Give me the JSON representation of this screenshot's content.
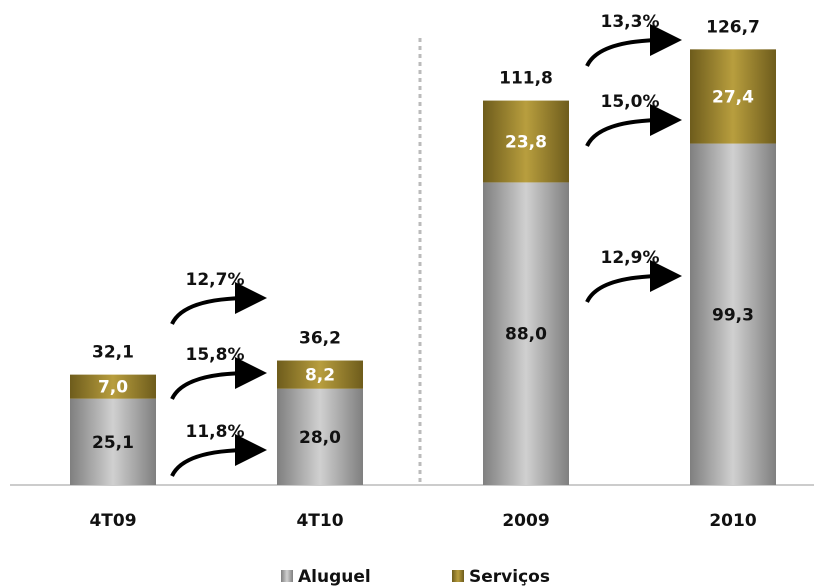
{
  "chart_data": {
    "type": "stacked_bar",
    "categories": [
      "4T09",
      "4T10",
      "2009",
      "2010"
    ],
    "series": [
      {
        "name": "Aluguel",
        "color": "#a6a6a6",
        "values": [
          25.1,
          28.0,
          88.0,
          99.3
        ],
        "value_labels": [
          "25,1",
          "28,0",
          "88,0",
          "99,3"
        ]
      },
      {
        "name": "Serviços",
        "color": "#9a8430",
        "values": [
          7.0,
          8.2,
          23.8,
          27.4
        ],
        "value_labels": [
          "7,0",
          "8,2",
          "23,8",
          "27,4"
        ]
      }
    ],
    "totals": [
      32.1,
      36.2,
      111.8,
      126.7
    ],
    "total_labels": [
      "32,1",
      "36,2",
      "111,8",
      "126,7"
    ],
    "annotations": [
      "12,7%",
      "15,8%",
      "11,8%",
      "13,3%",
      "15,0%",
      "12,9%"
    ],
    "ylim": [
      0,
      130
    ],
    "legend": "bottom"
  }
}
